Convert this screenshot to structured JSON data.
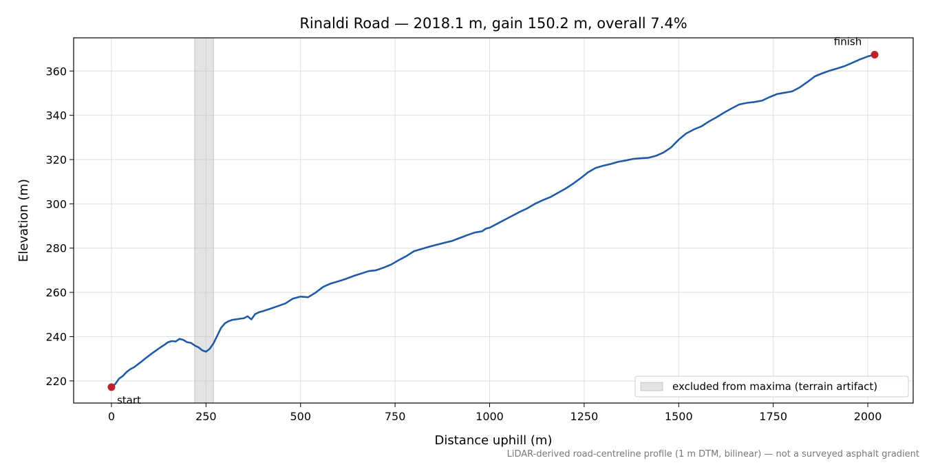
{
  "chart_data": {
    "type": "line",
    "title": "Rinaldi Road — 2018.1 m, gain 150.2 m, overall 7.4%",
    "xlabel": "Distance uphill (m)",
    "ylabel": "Elevation (m)",
    "xlim": [
      -100,
      2120
    ],
    "ylim": [
      210,
      375
    ],
    "xticks": [
      0,
      250,
      500,
      750,
      1000,
      1250,
      1500,
      1750,
      2000
    ],
    "xtick_labels": [
      "0",
      "250",
      "500",
      "750",
      "1000",
      "1250",
      "1500",
      "1750",
      "2000"
    ],
    "yticks": [
      220,
      240,
      260,
      280,
      300,
      320,
      340,
      360
    ],
    "ytick_labels": [
      "220",
      "240",
      "260",
      "280",
      "300",
      "320",
      "340",
      "360"
    ],
    "grid": true,
    "line_color": "#1f5aa6",
    "marker_color": "#c0202a",
    "series": [
      {
        "x": [
          0,
          10,
          20,
          30,
          40,
          50,
          60,
          70,
          80,
          90,
          100,
          110,
          120,
          130,
          140,
          150,
          160,
          170,
          180,
          190,
          200,
          210,
          220,
          230,
          240,
          250,
          260,
          270,
          280,
          290,
          300,
          310,
          320,
          330,
          340,
          350,
          360,
          370,
          380,
          390,
          400,
          420,
          440,
          460,
          480,
          500,
          520,
          540,
          560,
          580,
          600,
          620,
          640,
          660,
          680,
          700,
          720,
          740,
          760,
          780,
          800,
          820,
          840,
          860,
          880,
          900,
          920,
          940,
          960,
          980,
          990,
          1000,
          1020,
          1040,
          1060,
          1080,
          1100,
          1120,
          1140,
          1160,
          1180,
          1200,
          1220,
          1240,
          1260,
          1280,
          1300,
          1320,
          1340,
          1360,
          1380,
          1400,
          1420,
          1440,
          1460,
          1480,
          1500,
          1520,
          1540,
          1560,
          1580,
          1600,
          1620,
          1640,
          1660,
          1680,
          1700,
          1720,
          1740,
          1760,
          1780,
          1800,
          1820,
          1840,
          1860,
          1880,
          1900,
          1920,
          1940,
          1960,
          1980,
          2000,
          2018.1
        ],
        "y": [
          217.2,
          218.6,
          221.0,
          222.2,
          224.0,
          225.3,
          226.2,
          227.5,
          228.8,
          230.2,
          231.5,
          232.8,
          234.0,
          235.2,
          236.3,
          237.5,
          238.0,
          237.8,
          239.0,
          238.5,
          237.5,
          237.2,
          236.0,
          235.2,
          233.8,
          233.2,
          234.5,
          237.0,
          240.5,
          244.0,
          246.0,
          247.0,
          247.6,
          247.8,
          248.1,
          248.3,
          249.2,
          247.8,
          250.2,
          251.0,
          251.5,
          252.6,
          253.8,
          255.0,
          257.2,
          258.1,
          257.8,
          259.9,
          262.5,
          264.0,
          265.0,
          266.1,
          267.4,
          268.5,
          269.6,
          270.0,
          271.2,
          272.6,
          274.6,
          276.4,
          278.6,
          279.6,
          280.6,
          281.5,
          282.4,
          283.2,
          284.5,
          285.8,
          287.0,
          287.6,
          288.8,
          289.2,
          291.0,
          292.8,
          294.6,
          296.4,
          298.0,
          300.0,
          301.6,
          303.0,
          304.9,
          306.8,
          309.0,
          311.5,
          314.2,
          316.2,
          317.2,
          318.0,
          319.0,
          319.6,
          320.3,
          320.6,
          320.8,
          321.7,
          323.2,
          325.5,
          329.0,
          331.8,
          333.6,
          335.0,
          337.2,
          339.1,
          341.2,
          343.1,
          344.9,
          345.6,
          346.0,
          346.6,
          348.2,
          349.6,
          350.2,
          350.8,
          352.6,
          355.0,
          357.6,
          359.0,
          360.2,
          361.2,
          362.3,
          363.8,
          365.3,
          366.6,
          367.4
        ]
      }
    ],
    "excluded_range": [
      220,
      270
    ],
    "legend": {
      "entries": [
        "excluded from maxima (terrain artifact)"
      ],
      "location": "lower-right"
    },
    "annotations": [
      {
        "text": "start",
        "x": 0,
        "y": 217.2
      },
      {
        "text": "finish",
        "x": 2018.1,
        "y": 367.4
      }
    ],
    "caption": "LiDAR-derived road-centreline profile (1 m DTM, bilinear) — not a surveyed asphalt gradient"
  }
}
